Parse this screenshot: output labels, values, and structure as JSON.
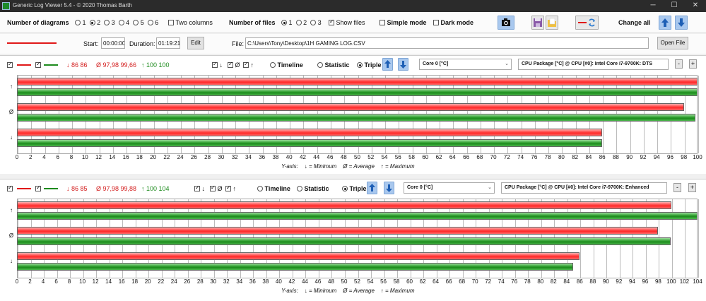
{
  "app": {
    "title": "Generic Log Viewer 5.4 - © 2020 Thomas Barth",
    "window_controls": [
      "─",
      "☐",
      "✕"
    ]
  },
  "toolbar": {
    "number_of_diagrams_label": "Number of diagrams",
    "diagram_options": [
      "1",
      "2",
      "3",
      "4",
      "5",
      "6"
    ],
    "diagram_selected": "2",
    "two_columns_label": "Two columns",
    "number_of_files_label": "Number of files",
    "file_options": [
      "1",
      "2",
      "3"
    ],
    "file_selected": "1",
    "show_files_label": "Show files",
    "simple_mode_label": "Simple mode",
    "dark_mode_label": "Dark mode",
    "change_all_label": "Change all"
  },
  "fileinfo": {
    "start_label": "Start:",
    "start_value": "00:00:00",
    "duration_label": "Duration:",
    "duration_value": "01:19:21",
    "edit_label": "Edit",
    "file_label": "File:",
    "file_path": "C:\\Users\\Tony\\Desktop\\1H GAMING LOG.CSV",
    "open_file_label": "Open File"
  },
  "legend_text": {
    "yaxis": "Y-axis:",
    "minimum": "↓ = Minimum",
    "average": "Ø = Average",
    "maximum": "↑ = Maximum"
  },
  "diagrams": [
    {
      "stats_red": "↓ 86 86",
      "stats_avg": "Ø 97,98 99,66",
      "stats_max": "↑ 100 100",
      "mode_timeline": "Timeline",
      "mode_statistic": "Statistic",
      "mode_triple": "Triple",
      "sensor_left": "Core 0 [°C]",
      "sensor_right": "CPU Package [°C] @ CPU [#0]: Intel Core i7-9700K: DTS",
      "axis_max": 100,
      "axis_ticks": [
        0,
        2,
        4,
        6,
        8,
        10,
        12,
        14,
        16,
        18,
        20,
        22,
        24,
        26,
        28,
        30,
        32,
        34,
        36,
        38,
        40,
        42,
        44,
        46,
        48,
        50,
        52,
        54,
        56,
        58,
        60,
        62,
        64,
        66,
        68,
        70,
        72,
        74,
        76,
        78,
        80,
        82,
        84,
        86,
        88,
        90,
        92,
        94,
        96,
        98,
        100
      ],
      "rows": [
        {
          "label": "↑",
          "red": 100,
          "green": 100
        },
        {
          "label": "Ø",
          "red": 97.98,
          "green": 99.66
        },
        {
          "label": "↓",
          "red": 86,
          "green": 86
        }
      ]
    },
    {
      "stats_red": "↓ 86 85",
      "stats_avg": "Ø 97,98 99,88",
      "stats_max": "↑ 100 104",
      "mode_timeline": "Timeline",
      "mode_statistic": "Statistic",
      "mode_triple": "Triple",
      "sensor_left": "Core 0 [°C]",
      "sensor_right": "CPU Package [°C] @ CPU [#0]: Intel Core i7-9700K: Enhanced",
      "axis_max": 104,
      "axis_ticks": [
        0,
        2,
        4,
        6,
        8,
        10,
        12,
        14,
        16,
        18,
        20,
        22,
        24,
        26,
        28,
        30,
        32,
        34,
        36,
        38,
        40,
        42,
        44,
        46,
        48,
        50,
        52,
        54,
        56,
        58,
        60,
        62,
        64,
        66,
        68,
        70,
        72,
        74,
        76,
        78,
        80,
        82,
        84,
        86,
        88,
        90,
        92,
        94,
        96,
        98,
        100,
        102,
        104
      ],
      "rows": [
        {
          "label": "↑",
          "red": 100,
          "green": 104
        },
        {
          "label": "Ø",
          "red": 97.98,
          "green": 99.88
        },
        {
          "label": "↓",
          "red": 86,
          "green": 85
        }
      ]
    }
  ],
  "colors": {
    "red": "#ff2a2a",
    "green": "#1d8b1d"
  }
}
